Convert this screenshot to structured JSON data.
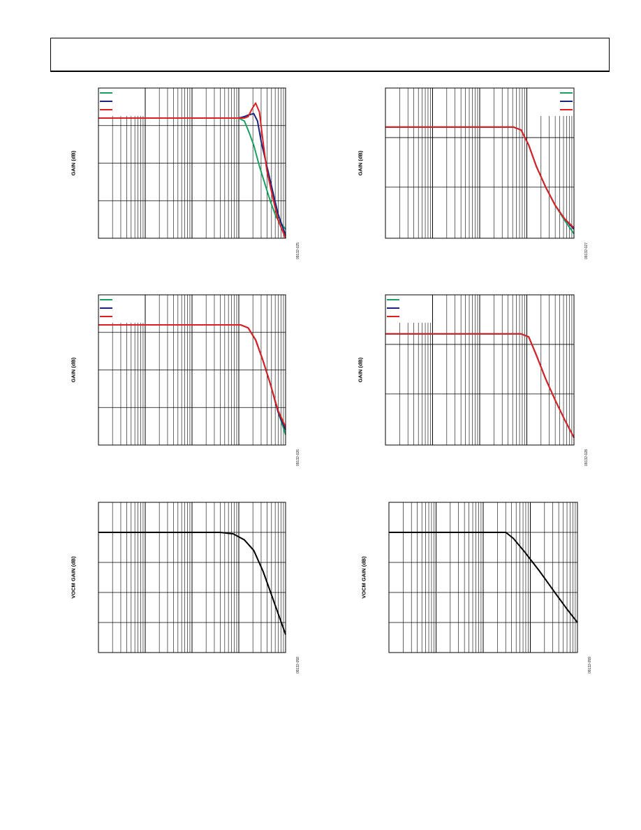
{
  "header": {
    "title": ""
  },
  "chart_data": [
    {
      "id": "top-left",
      "type": "line",
      "ylabel": "GAIN (dB)",
      "fig_id": "09132-025",
      "xscale": "log",
      "grid": true,
      "legend": "top-left",
      "series": [
        {
          "color": "#1aa060",
          "points": [
            [
              0,
              0.2
            ],
            [
              0.75,
              0.2
            ],
            [
              0.78,
              0.22
            ],
            [
              0.8,
              0.28
            ],
            [
              0.83,
              0.38
            ],
            [
              0.86,
              0.52
            ],
            [
              0.89,
              0.64
            ],
            [
              0.92,
              0.76
            ],
            [
              0.95,
              0.86
            ],
            [
              1,
              0.94
            ]
          ]
        },
        {
          "color": "#1a237e",
          "points": [
            [
              0,
              0.2
            ],
            [
              0.75,
              0.2
            ],
            [
              0.78,
              0.19
            ],
            [
              0.8,
              0.18
            ],
            [
              0.83,
              0.17
            ],
            [
              0.85,
              0.22
            ],
            [
              0.87,
              0.36
            ],
            [
              0.9,
              0.52
            ],
            [
              0.93,
              0.68
            ],
            [
              0.96,
              0.84
            ],
            [
              1,
              0.98
            ]
          ]
        },
        {
          "color": "#e02020",
          "points": [
            [
              0,
              0.2
            ],
            [
              0.75,
              0.2
            ],
            [
              0.78,
              0.2
            ],
            [
              0.8,
              0.19
            ],
            [
              0.82,
              0.14
            ],
            [
              0.84,
              0.1
            ],
            [
              0.86,
              0.16
            ],
            [
              0.88,
              0.36
            ],
            [
              0.9,
              0.55
            ],
            [
              0.93,
              0.72
            ],
            [
              0.96,
              0.88
            ],
            [
              1,
              1.0
            ]
          ]
        }
      ]
    },
    {
      "id": "top-right",
      "type": "line",
      "ylabel": "GAIN (dB)",
      "fig_id": "09132-027",
      "xscale": "log",
      "grid": true,
      "legend": "top-right",
      "series": [
        {
          "color": "#1aa060",
          "points": [
            [
              0,
              0.26
            ],
            [
              0.68,
              0.26
            ],
            [
              0.72,
              0.28
            ],
            [
              0.76,
              0.38
            ],
            [
              0.8,
              0.52
            ],
            [
              0.85,
              0.66
            ],
            [
              0.9,
              0.78
            ],
            [
              0.95,
              0.88
            ],
            [
              1,
              0.97
            ]
          ]
        },
        {
          "color": "#1a237e",
          "points": [
            [
              0,
              0.26
            ],
            [
              0.68,
              0.26
            ],
            [
              0.72,
              0.28
            ],
            [
              0.76,
              0.38
            ],
            [
              0.8,
              0.52
            ],
            [
              0.85,
              0.66
            ],
            [
              0.9,
              0.78
            ],
            [
              0.95,
              0.87
            ],
            [
              1,
              0.94
            ]
          ]
        },
        {
          "color": "#e02020",
          "points": [
            [
              0,
              0.26
            ],
            [
              0.68,
              0.26
            ],
            [
              0.72,
              0.28
            ],
            [
              0.76,
              0.38
            ],
            [
              0.8,
              0.52
            ],
            [
              0.85,
              0.66
            ],
            [
              0.9,
              0.78
            ],
            [
              0.95,
              0.87
            ],
            [
              1,
              0.93
            ]
          ]
        }
      ]
    },
    {
      "id": "middle-left",
      "type": "line",
      "ylabel": "GAIN (dB)",
      "fig_id": "09132-026",
      "xscale": "log",
      "grid": true,
      "legend": "top-left",
      "series": [
        {
          "color": "#1aa060",
          "points": [
            [
              0,
              0.2
            ],
            [
              0.76,
              0.2
            ],
            [
              0.8,
              0.22
            ],
            [
              0.84,
              0.3
            ],
            [
              0.88,
              0.44
            ],
            [
              0.92,
              0.6
            ],
            [
              0.96,
              0.78
            ],
            [
              1,
              0.93
            ]
          ]
        },
        {
          "color": "#1a237e",
          "points": [
            [
              0,
              0.2
            ],
            [
              0.76,
              0.2
            ],
            [
              0.8,
              0.22
            ],
            [
              0.84,
              0.3
            ],
            [
              0.88,
              0.44
            ],
            [
              0.92,
              0.6
            ],
            [
              0.96,
              0.78
            ],
            [
              1,
              0.9
            ]
          ]
        },
        {
          "color": "#e02020",
          "points": [
            [
              0,
              0.2
            ],
            [
              0.76,
              0.2
            ],
            [
              0.8,
              0.22
            ],
            [
              0.84,
              0.3
            ],
            [
              0.88,
              0.44
            ],
            [
              0.92,
              0.6
            ],
            [
              0.96,
              0.77
            ],
            [
              1,
              0.88
            ]
          ]
        }
      ]
    },
    {
      "id": "middle-right",
      "type": "line",
      "ylabel": "GAIN (dB)",
      "fig_id": "09132-028",
      "xscale": "log",
      "grid": true,
      "legend": "top-left",
      "series": [
        {
          "color": "#1aa060",
          "points": [
            [
              0,
              0.26
            ],
            [
              0.72,
              0.26
            ],
            [
              0.76,
              0.28
            ],
            [
              0.8,
              0.4
            ],
            [
              0.85,
              0.56
            ],
            [
              0.9,
              0.7
            ],
            [
              0.95,
              0.83
            ],
            [
              1,
              0.95
            ]
          ]
        },
        {
          "color": "#1a237e",
          "points": [
            [
              0,
              0.26
            ],
            [
              0.72,
              0.26
            ],
            [
              0.76,
              0.28
            ],
            [
              0.8,
              0.4
            ],
            [
              0.85,
              0.56
            ],
            [
              0.9,
              0.7
            ],
            [
              0.95,
              0.83
            ],
            [
              1,
              0.95
            ]
          ]
        },
        {
          "color": "#e02020",
          "points": [
            [
              0,
              0.26
            ],
            [
              0.72,
              0.26
            ],
            [
              0.76,
              0.28
            ],
            [
              0.8,
              0.4
            ],
            [
              0.85,
              0.56
            ],
            [
              0.9,
              0.7
            ],
            [
              0.95,
              0.83
            ],
            [
              1,
              0.95
            ]
          ]
        }
      ]
    },
    {
      "id": "bottom-left",
      "type": "line",
      "ylabel": "VOCM GAIN (dB)",
      "fig_id": "09132-058",
      "xscale": "log",
      "grid": true,
      "legend": "none",
      "series": [
        {
          "color": "#000000",
          "points": [
            [
              0,
              0.2
            ],
            [
              0.65,
              0.2
            ],
            [
              0.72,
              0.21
            ],
            [
              0.78,
              0.25
            ],
            [
              0.83,
              0.32
            ],
            [
              0.88,
              0.46
            ],
            [
              0.92,
              0.6
            ],
            [
              0.96,
              0.74
            ],
            [
              1,
              0.88
            ]
          ]
        }
      ]
    },
    {
      "id": "bottom-right",
      "type": "line",
      "ylabel": "VOCM GAIN (dB)",
      "fig_id": "09132-059",
      "xscale": "log",
      "grid": true,
      "legend": "none",
      "series": [
        {
          "color": "#000000",
          "points": [
            [
              0,
              0.2
            ],
            [
              0.62,
              0.2
            ],
            [
              0.66,
              0.24
            ],
            [
              0.72,
              0.33
            ],
            [
              0.8,
              0.46
            ],
            [
              0.88,
              0.6
            ],
            [
              0.95,
              0.72
            ],
            [
              1,
              0.8
            ]
          ]
        }
      ]
    }
  ]
}
